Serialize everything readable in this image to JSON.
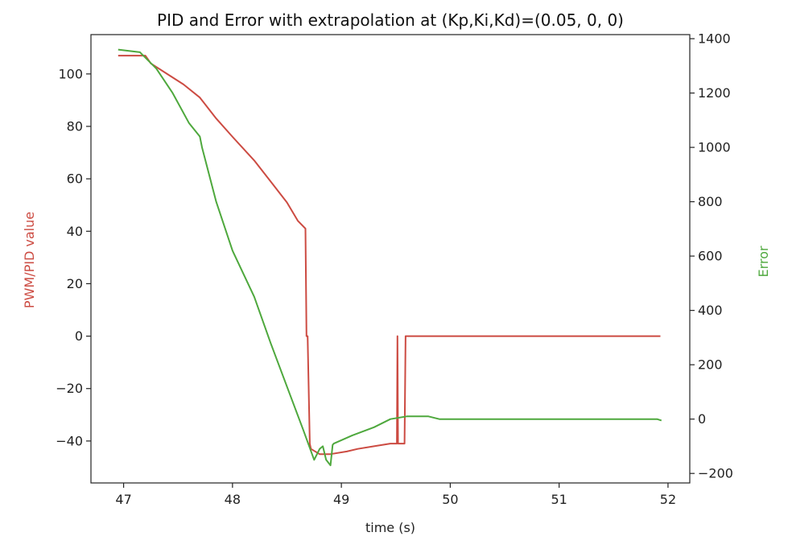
{
  "chart_data": {
    "type": "line",
    "title": "PID and Error with extrapolation at (Kp,Ki,Kd)=(0.05, 0, 0)",
    "xlabel": "time (s)",
    "ylabel_left": "PWM/PID value",
    "ylabel_right": "Error",
    "xlim": [
      46.7,
      52.2
    ],
    "ylim_left": [
      -56,
      115
    ],
    "ylim_right": [
      -235,
      1415
    ],
    "x_ticks": [
      "47",
      "48",
      "49",
      "50",
      "51",
      "52"
    ],
    "y_left_ticks": [
      "100",
      "80",
      "60",
      "40",
      "20",
      "0",
      "−20",
      "−40"
    ],
    "y_right_ticks": [
      "1400",
      "1200",
      "1000",
      "800",
      "600",
      "400",
      "200",
      "0",
      "−200"
    ],
    "grid": false,
    "colors": {
      "pid": "#cc4b42",
      "error": "#4ea83d"
    },
    "series": [
      {
        "axis": "left",
        "x": [
          46.95,
          47.2,
          47.25,
          47.4,
          47.55,
          47.7,
          47.85,
          48.0,
          48.2,
          48.35,
          48.5,
          48.6,
          48.67,
          48.68,
          48.69,
          48.71,
          48.72,
          48.8,
          48.9,
          49.05,
          49.15,
          49.3,
          49.45,
          49.51,
          49.515,
          49.52,
          49.53,
          49.56,
          49.58,
          49.59,
          50.0,
          51.0,
          51.93
        ],
        "y": [
          107,
          107,
          104,
          100,
          96,
          91,
          83,
          76,
          67,
          59,
          51,
          44,
          41,
          0,
          0,
          -41,
          -43,
          -45,
          -45,
          -44,
          -43,
          -42,
          -41,
          -41,
          0,
          -41,
          -41,
          -41,
          -41,
          0,
          0,
          0,
          0
        ]
      },
      {
        "axis": "right",
        "x": [
          46.95,
          47.15,
          47.3,
          47.45,
          47.6,
          47.7,
          47.72,
          47.85,
          48.0,
          48.2,
          48.35,
          48.5,
          48.65,
          48.75,
          48.8,
          48.83,
          48.86,
          48.9,
          48.92,
          48.93,
          49.1,
          49.3,
          49.45,
          49.6,
          49.7,
          49.8,
          49.9,
          50.5,
          51.0,
          51.5,
          51.9,
          51.94
        ],
        "y": [
          1360,
          1350,
          1290,
          1200,
          1090,
          1040,
          1000,
          800,
          620,
          450,
          280,
          120,
          -40,
          -150,
          -110,
          -100,
          -150,
          -170,
          -95,
          -90,
          -60,
          -30,
          0,
          10,
          10,
          10,
          0,
          0,
          0,
          0,
          0,
          -5
        ]
      }
    ]
  }
}
